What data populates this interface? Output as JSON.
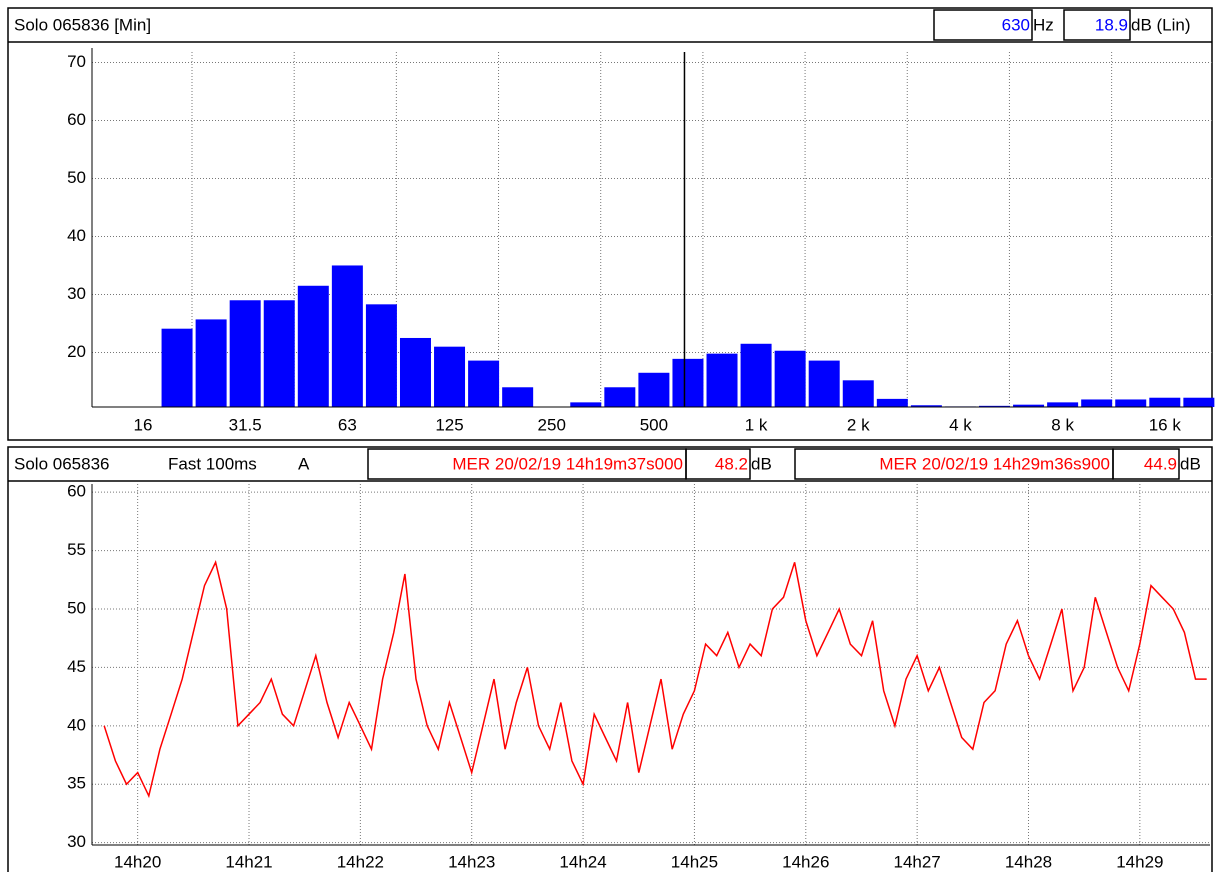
{
  "chart_data": [
    {
      "type": "bar",
      "title": "Solo 065836 [Min]",
      "cursor": {
        "frequency": 630,
        "frequency_unit": "Hz",
        "level": 18.9,
        "level_unit": "dB (Lin)"
      },
      "color": "#0000ff",
      "cursor_color": "#000000",
      "grid": true,
      "categories": [
        "16",
        null,
        null,
        "31.5",
        null,
        null,
        "63",
        null,
        null,
        "125",
        null,
        null,
        "250",
        null,
        null,
        "500",
        null,
        null,
        "1 k",
        null,
        null,
        "2 k",
        null,
        null,
        "4 k",
        null,
        null,
        "8 k",
        null,
        null,
        "16 k",
        null
      ],
      "values": [
        null,
        24.1,
        25.7,
        29,
        29,
        31.5,
        35,
        28.3,
        22.5,
        21,
        18.6,
        14,
        10.6,
        11.4,
        14,
        16.5,
        18.9,
        19.8,
        21.5,
        20.3,
        18.6,
        15.2,
        12,
        10.9,
        10.7,
        10.8,
        11,
        11.4,
        11.9,
        11.9,
        12.2,
        12.2
      ],
      "ylim": [
        10.6,
        71.8
      ],
      "yticks": [
        20,
        30,
        40,
        50,
        60,
        70
      ]
    },
    {
      "type": "line",
      "title": "Solo 065836",
      "detector": "Fast 100ms",
      "weighting": "A",
      "start": {
        "time": "MER 20/02/19 14h19m37s000",
        "level": 48.2,
        "unit": "dB"
      },
      "end": {
        "time": "MER 20/02/19 14h29m36s900",
        "level": 44.9,
        "unit": "dB"
      },
      "color": "#ff0000",
      "grid": true,
      "x": [
        19.7,
        19.8,
        19.9,
        20.0,
        20.1,
        20.2,
        20.3,
        20.4,
        20.5,
        20.6,
        20.7,
        20.8,
        20.9,
        21.0,
        21.1,
        21.2,
        21.3,
        21.4,
        21.5,
        21.6,
        21.7,
        21.8,
        21.9,
        22.0,
        22.1,
        22.2,
        22.3,
        22.4,
        22.5,
        22.6,
        22.7,
        22.8,
        22.9,
        23.0,
        23.1,
        23.2,
        23.3,
        23.4,
        23.5,
        23.6,
        23.7,
        23.8,
        23.9,
        24.0,
        24.1,
        24.2,
        24.3,
        24.4,
        24.5,
        24.6,
        24.7,
        24.8,
        24.9,
        25.0,
        25.1,
        25.2,
        25.3,
        25.4,
        25.5,
        25.6,
        25.7,
        25.8,
        25.9,
        26.0,
        26.1,
        26.2,
        26.3,
        26.4,
        26.5,
        26.6,
        26.7,
        26.8,
        26.9,
        27.0,
        27.1,
        27.2,
        27.3,
        27.4,
        27.5,
        27.6,
        27.7,
        27.8,
        27.9,
        28.0,
        28.1,
        28.2,
        28.3,
        28.4,
        28.5,
        28.6,
        28.7,
        28.8,
        28.9,
        29.0,
        29.1,
        29.2,
        29.3,
        29.4,
        29.5,
        29.6
      ],
      "values": [
        40,
        37,
        35,
        36,
        34,
        38,
        41,
        44,
        48,
        52,
        54,
        50,
        40,
        41,
        42,
        44,
        41,
        40,
        43,
        46,
        42,
        39,
        42,
        40,
        38,
        44,
        48,
        53,
        44,
        40,
        38,
        42,
        39,
        36,
        40,
        44,
        38,
        42,
        45,
        40,
        38,
        42,
        37,
        35,
        41,
        39,
        37,
        42,
        36,
        40,
        44,
        38,
        41,
        43,
        47,
        46,
        48,
        45,
        47,
        46,
        50,
        51,
        54,
        49,
        46,
        48,
        50,
        47,
        46,
        49,
        43,
        40,
        44,
        46,
        43,
        45,
        42,
        39,
        38,
        42,
        43,
        47,
        49,
        46,
        44,
        47,
        50,
        43,
        45,
        51,
        48,
        45,
        43,
        47,
        52,
        51,
        50,
        48,
        44,
        44
      ],
      "xlim": [
        19.59,
        29.63
      ],
      "xticks": [
        {
          "value": 20,
          "label": "14h20"
        },
        {
          "value": 21,
          "label": "14h21"
        },
        {
          "value": 22,
          "label": "14h22"
        },
        {
          "value": 23,
          "label": "14h23"
        },
        {
          "value": 24,
          "label": "14h24"
        },
        {
          "value": 25,
          "label": "14h25"
        },
        {
          "value": 26,
          "label": "14h26"
        },
        {
          "value": 27,
          "label": "14h27"
        },
        {
          "value": 28,
          "label": "14h28"
        },
        {
          "value": 29,
          "label": "14h29"
        }
      ],
      "ylim": [
        29.8,
        60.7
      ],
      "yticks": [
        30,
        35,
        40,
        45,
        50,
        55,
        60
      ]
    }
  ]
}
